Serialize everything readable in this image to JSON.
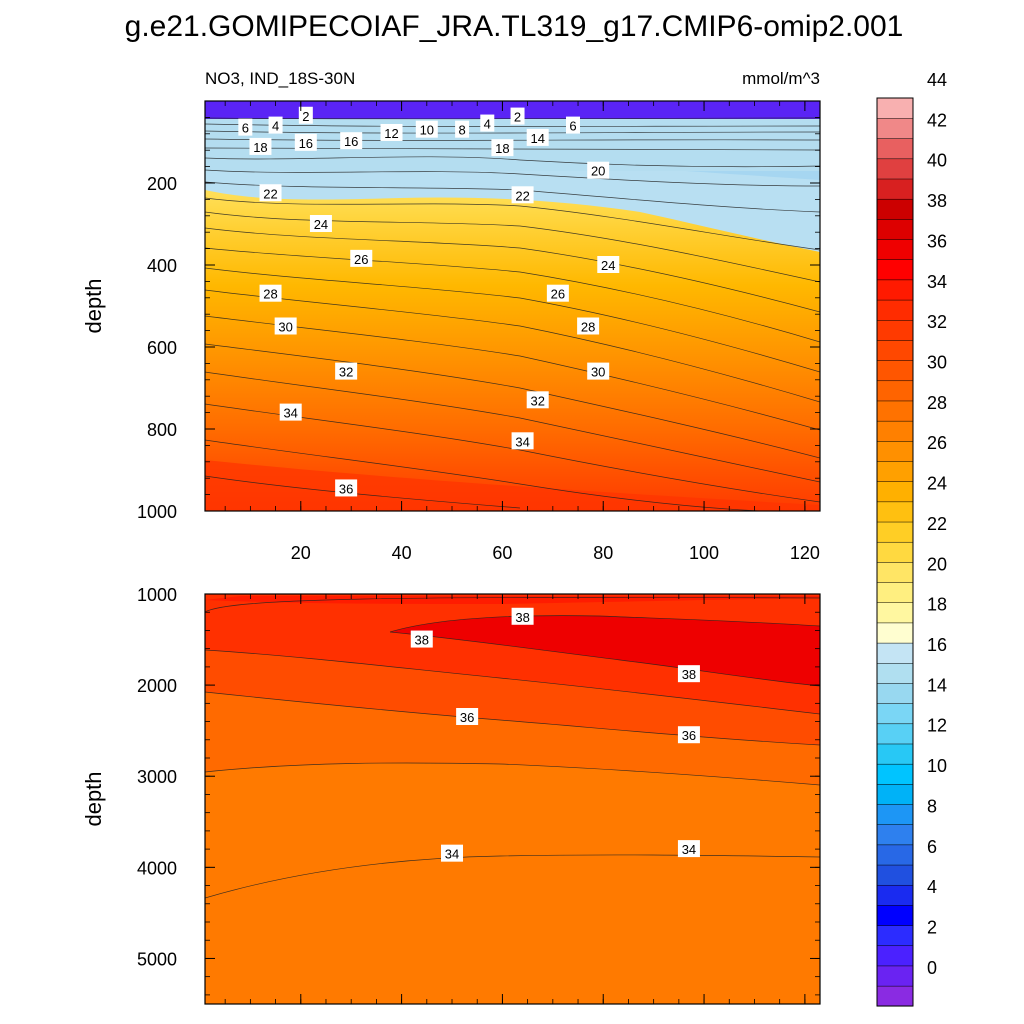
{
  "title": "g.e21.GOMIPECOIAF_JRA.TL319_g17.CMIP6-omip2.001",
  "panel_left_label": "NO3, IND_18S-30N",
  "panel_right_label": "mmol/m^3",
  "chart_data": [
    {
      "type": "contour",
      "name": "upper",
      "ylabel": "depth",
      "xlim": [
        1,
        123
      ],
      "ylim": [
        0,
        1000
      ],
      "y_inverted": true,
      "xticks": [
        20,
        40,
        60,
        80,
        100,
        120
      ],
      "yticks": [
        200,
        400,
        600,
        800,
        1000
      ],
      "contour_labels": [
        {
          "v": "2",
          "x": 21,
          "y": 36
        },
        {
          "v": "4",
          "x": 15,
          "y": 60
        },
        {
          "v": "6",
          "x": 9,
          "y": 65
        },
        {
          "v": "18",
          "x": 12,
          "y": 112
        },
        {
          "v": "16",
          "x": 21,
          "y": 102
        },
        {
          "v": "16",
          "x": 30,
          "y": 98
        },
        {
          "v": "12",
          "x": 38,
          "y": 78
        },
        {
          "v": "10",
          "x": 45,
          "y": 70
        },
        {
          "v": "8",
          "x": 52,
          "y": 70
        },
        {
          "v": "4",
          "x": 57,
          "y": 55
        },
        {
          "v": "2",
          "x": 63,
          "y": 38
        },
        {
          "v": "14",
          "x": 67,
          "y": 90
        },
        {
          "v": "6",
          "x": 74,
          "y": 60
        },
        {
          "v": "18",
          "x": 60,
          "y": 115
        },
        {
          "v": "20",
          "x": 79,
          "y": 170
        },
        {
          "v": "22",
          "x": 14,
          "y": 225
        },
        {
          "v": "22",
          "x": 64,
          "y": 230
        },
        {
          "v": "24",
          "x": 24,
          "y": 300
        },
        {
          "v": "24",
          "x": 81,
          "y": 400
        },
        {
          "v": "26",
          "x": 32,
          "y": 385
        },
        {
          "v": "26",
          "x": 71,
          "y": 470
        },
        {
          "v": "28",
          "x": 14,
          "y": 470
        },
        {
          "v": "28",
          "x": 77,
          "y": 550
        },
        {
          "v": "30",
          "x": 17,
          "y": 550
        },
        {
          "v": "30",
          "x": 79,
          "y": 660
        },
        {
          "v": "32",
          "x": 29,
          "y": 660
        },
        {
          "v": "32",
          "x": 67,
          "y": 730
        },
        {
          "v": "34",
          "x": 18,
          "y": 760
        },
        {
          "v": "34",
          "x": 64,
          "y": 830
        },
        {
          "v": "36",
          "x": 29,
          "y": 945
        }
      ]
    },
    {
      "type": "contour",
      "name": "lower",
      "ylabel": "depth",
      "xlim": [
        1,
        123
      ],
      "ylim": [
        1000,
        5500
      ],
      "y_inverted": true,
      "yticks": [
        1000,
        2000,
        3000,
        4000,
        5000
      ],
      "contour_labels": [
        {
          "v": "38",
          "x": 64,
          "y": 1250
        },
        {
          "v": "38",
          "x": 44,
          "y": 1500
        },
        {
          "v": "38",
          "x": 97,
          "y": 1880
        },
        {
          "v": "36",
          "x": 53,
          "y": 2350
        },
        {
          "v": "36",
          "x": 97,
          "y": 2550
        },
        {
          "v": "34",
          "x": 50,
          "y": 3850
        },
        {
          "v": "34",
          "x": 97,
          "y": 3800
        }
      ]
    }
  ],
  "colorbar": {
    "labels": [
      "0",
      "2",
      "4",
      "6",
      "8",
      "10",
      "12",
      "14",
      "16",
      "18",
      "20",
      "22",
      "24",
      "26",
      "28",
      "30",
      "32",
      "34",
      "36",
      "38",
      "40",
      "42",
      "44"
    ],
    "colors": [
      "#8a2be2",
      "#6a23f2",
      "#4b21ff",
      "#2c2cff",
      "#0000ff",
      "#1a2bf0",
      "#2050e0",
      "#2868e6",
      "#2e80ee",
      "#1d96f5",
      "#00b2f7",
      "#00c4ff",
      "#28c8f5",
      "#58d0f5",
      "#7ad6f5",
      "#98d8f0",
      "#b0dff0",
      "#c4e4f4",
      "#fffed0",
      "#fff7a0",
      "#ffef80",
      "#ffe565",
      "#ffd940",
      "#ffce25",
      "#ffc010",
      "#ffb000",
      "#ffa000",
      "#ff9000",
      "#ff8000",
      "#ff7200",
      "#ff6400",
      "#ff5600",
      "#ff4800",
      "#ff3a00",
      "#ff2c00",
      "#ff1a00",
      "#ff0000",
      "#ef0000",
      "#dd0000",
      "#cc0000",
      "#d82020",
      "#e04040",
      "#e86060",
      "#f08888",
      "#f8b0b0"
    ]
  }
}
